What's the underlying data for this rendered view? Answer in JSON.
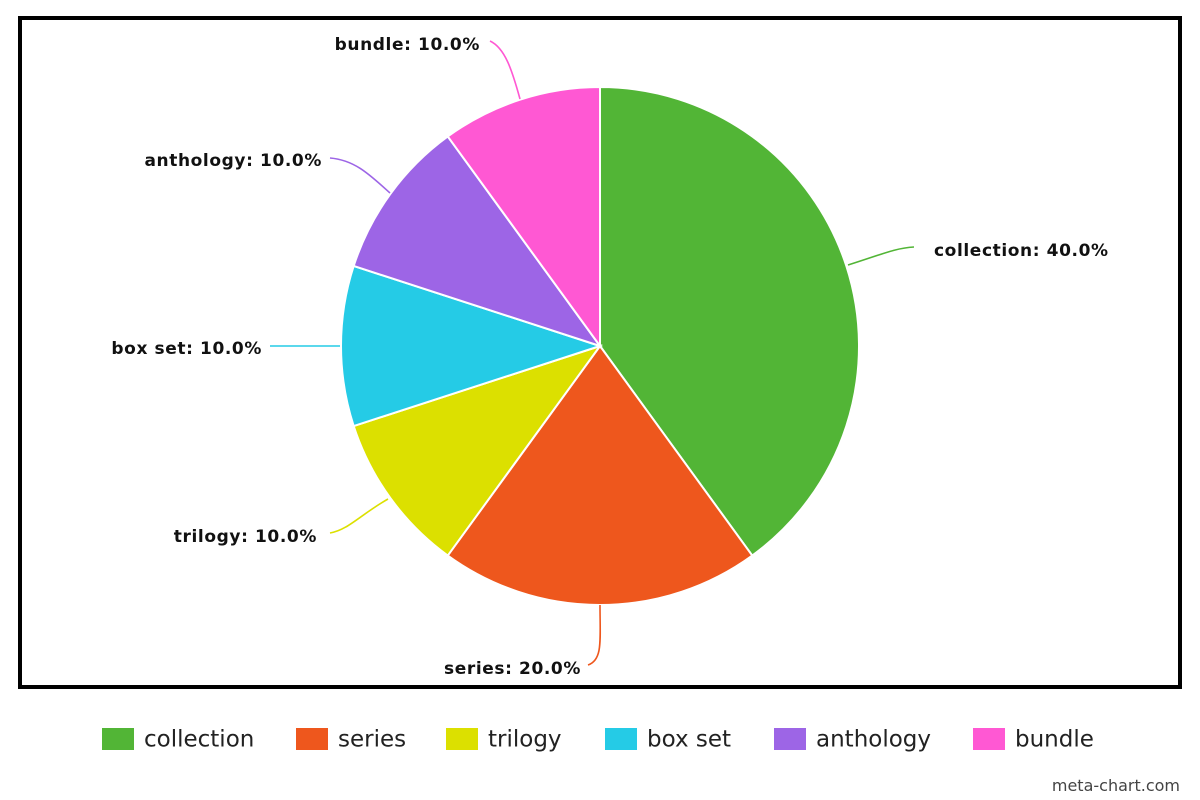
{
  "chart_data": {
    "type": "pie",
    "title": "",
    "legend_placement": "bottom",
    "slices": [
      {
        "label": "collection",
        "value": 40.0,
        "display": "collection: 40.0%",
        "color": "#52b536"
      },
      {
        "label": "series",
        "value": 20.0,
        "display": "series: 20.0%",
        "color": "#ee571d"
      },
      {
        "label": "trilogy",
        "value": 10.0,
        "display": "trilogy: 10.0%",
        "color": "#dce000"
      },
      {
        "label": "box set",
        "value": 10.0,
        "display": "box set: 10.0%",
        "color": "#25cbe6"
      },
      {
        "label": "anthology",
        "value": 10.0,
        "display": "anthology: 10.0%",
        "color": "#9d65e6"
      },
      {
        "label": "bundle",
        "value": 10.0,
        "display": "bundle: 10.0%",
        "color": "#ff58d3"
      }
    ]
  },
  "watermark": "meta-chart.com"
}
